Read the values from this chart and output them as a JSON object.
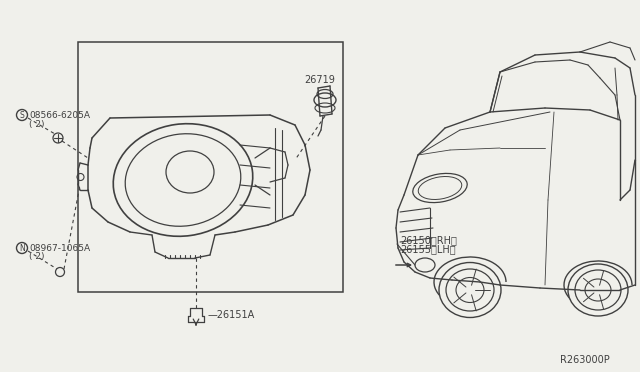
{
  "bg_color": "#f0f0eb",
  "line_color": "#404040",
  "part_numbers": {
    "screw": "08566-6205A",
    "screw_qty": "( 2)",
    "screw_symbol": "S",
    "nut": "08967-1065A",
    "nut_qty": "( 2)",
    "nut_symbol": "N",
    "bulb": "26719",
    "connector": "26151A",
    "fog_lamp_rh": "26150〈RH〉",
    "fog_lamp_lh": "26155〈LH〉",
    "ref_num": "R263000P"
  }
}
